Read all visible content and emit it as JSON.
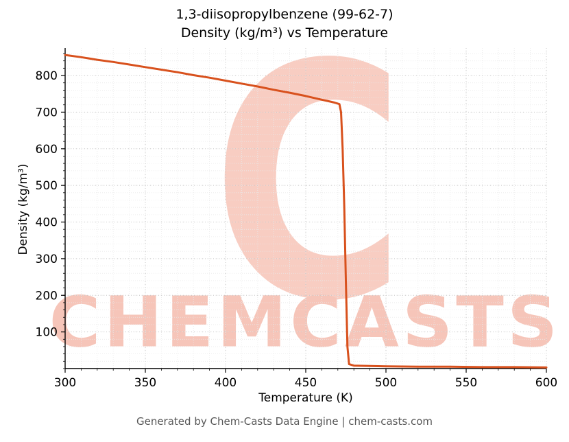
{
  "page": {
    "footer": "Generated by Chem-Casts Data Engine | chem-casts.com"
  },
  "watermark": {
    "logo_letter": "C",
    "text": "CHEMCASTS",
    "color": "#f6c5b9"
  },
  "chart_data": {
    "type": "line",
    "title_line1": "1,3-diisopropylbenzene (99-62-7)",
    "title_line2": "Density (kg/m³) vs Temperature",
    "xlabel": "Temperature (K)",
    "ylabel": "Density (kg/m³)",
    "xlim": [
      300,
      600
    ],
    "ylim": [
      0,
      875
    ],
    "xticks": [
      300,
      350,
      400,
      450,
      500,
      550,
      600
    ],
    "yticks": [
      100,
      200,
      300,
      400,
      500,
      600,
      700,
      800
    ],
    "x_minor_step": 10,
    "y_minor_step": 20,
    "grid": true,
    "line_color": "#d8511d",
    "line_width": 3,
    "series": [
      {
        "name": "Density",
        "points": [
          [
            300,
            856
          ],
          [
            310,
            850
          ],
          [
            320,
            843
          ],
          [
            330,
            837
          ],
          [
            340,
            830
          ],
          [
            350,
            823
          ],
          [
            360,
            816
          ],
          [
            370,
            809
          ],
          [
            380,
            801
          ],
          [
            390,
            794
          ],
          [
            400,
            786
          ],
          [
            410,
            778
          ],
          [
            420,
            770
          ],
          [
            430,
            761
          ],
          [
            440,
            753
          ],
          [
            450,
            744
          ],
          [
            460,
            734
          ],
          [
            465,
            729
          ],
          [
            468,
            726
          ],
          [
            471,
            722
          ],
          [
            472,
            700
          ],
          [
            473,
            600
          ],
          [
            474,
            440
          ],
          [
            475,
            240
          ],
          [
            476,
            60
          ],
          [
            477,
            12
          ],
          [
            480,
            8
          ],
          [
            490,
            7
          ],
          [
            500,
            6
          ],
          [
            520,
            5
          ],
          [
            540,
            5
          ],
          [
            560,
            4
          ],
          [
            580,
            4
          ],
          [
            600,
            3
          ]
        ]
      }
    ]
  }
}
